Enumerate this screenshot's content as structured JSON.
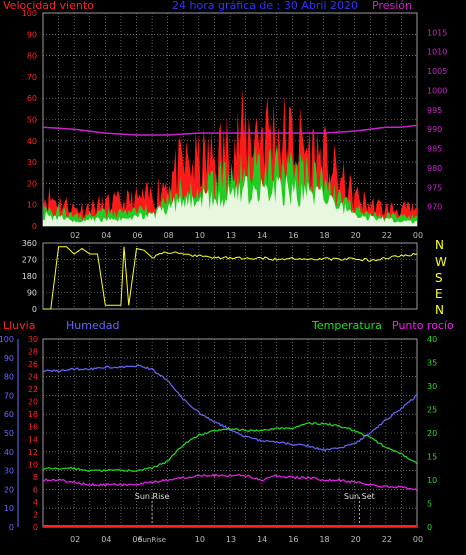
{
  "header": {
    "wind_label": "Velocidad viento",
    "title": "24 hora gráfica de : 30 Abril 2020",
    "pressure_label": "Presión"
  },
  "middle": {
    "compass": [
      "N",
      "W",
      "S",
      "E",
      "N"
    ]
  },
  "lower_header": {
    "rain_label": "Lluvia",
    "humidity_label": "Humedad",
    "temp_label": "Temperatura",
    "dew_label": "Punto rocío"
  },
  "colors": {
    "wind_gust": "#ff1a1a",
    "wind_avg": "#22cc22",
    "wind_min": "#e8f8e0",
    "pressure": "#cc22cc",
    "direction": "#ffff22",
    "humidity": "#6666ff",
    "temperature": "#22dd22",
    "dew_point": "#ee22ee",
    "rain": "#ff2222",
    "grid": "#9a9a9a"
  },
  "chart_data": [
    {
      "type": "area",
      "title": "24 hora gráfica de : 30 Abril 2020",
      "x_ticks": [
        "02",
        "04",
        "06",
        "08",
        "10",
        "13",
        "14",
        "16",
        "18",
        "20",
        "22",
        "00"
      ],
      "y_left": {
        "label": "Velocidad viento",
        "range": [
          0,
          100
        ],
        "ticks": [
          "0",
          "10",
          "20",
          "30",
          "40",
          "50",
          "60",
          "70",
          "80",
          "90",
          "100"
        ]
      },
      "y_right": {
        "label": "Presión",
        "range": [
          965,
          1020
        ],
        "ticks": [
          "970",
          "975",
          "980",
          "985",
          "990",
          "995",
          "1000",
          "1005",
          "1010",
          "1015"
        ]
      },
      "x_range": [
        0,
        24
      ],
      "grid": true,
      "series": [
        {
          "name": "gust",
          "x": [
            0,
            1,
            2,
            3,
            4,
            5,
            6,
            7,
            8,
            9,
            10,
            11,
            12,
            13,
            14,
            15,
            16,
            17,
            18,
            19,
            20,
            21,
            22,
            23,
            24
          ],
          "values": [
            14,
            12,
            8,
            9,
            10,
            11,
            12,
            14,
            22,
            28,
            30,
            32,
            38,
            43,
            46,
            44,
            40,
            36,
            32,
            22,
            14,
            10,
            8,
            8,
            7
          ]
        },
        {
          "name": "average",
          "x": [
            0,
            1,
            2,
            3,
            4,
            5,
            6,
            7,
            8,
            9,
            10,
            11,
            12,
            13,
            14,
            15,
            16,
            17,
            18,
            19,
            20,
            21,
            22,
            23,
            24
          ],
          "values": [
            8,
            7,
            4,
            5,
            6,
            6,
            7,
            9,
            14,
            17,
            18,
            20,
            24,
            26,
            28,
            27,
            25,
            23,
            20,
            14,
            8,
            6,
            5,
            4,
            4
          ]
        },
        {
          "name": "minimum",
          "x": [
            0,
            1,
            2,
            3,
            4,
            5,
            6,
            7,
            8,
            9,
            10,
            11,
            12,
            13,
            14,
            15,
            16,
            17,
            18,
            19,
            20,
            21,
            22,
            23,
            24
          ],
          "values": [
            5,
            4,
            2,
            3,
            3,
            3,
            4,
            5,
            9,
            11,
            12,
            13,
            16,
            17,
            19,
            18,
            16,
            15,
            13,
            9,
            5,
            4,
            3,
            2,
            2
          ]
        },
        {
          "name": "pressure",
          "x": [
            0,
            2,
            4,
            6,
            8,
            10,
            12,
            14,
            16,
            18,
            20,
            21,
            22,
            23,
            24
          ],
          "values": [
            990.5,
            990,
            989,
            988.5,
            988.5,
            989,
            989,
            989,
            989,
            989,
            989.5,
            990,
            990.5,
            990.5,
            991
          ]
        }
      ]
    },
    {
      "type": "line",
      "title": "",
      "y_left": {
        "label": "",
        "range": [
          0,
          360
        ],
        "ticks": [
          "0",
          "90",
          "180",
          "270",
          "360"
        ]
      },
      "y_right": {
        "label": "",
        "ticks": [
          "N",
          "W",
          "S",
          "E",
          "N"
        ]
      },
      "x_range": [
        0,
        24
      ],
      "grid": true,
      "series": [
        {
          "name": "direction",
          "x": [
            0,
            0.5,
            1,
            1.5,
            2,
            2.5,
            3,
            3.5,
            4,
            4.5,
            5,
            5.2,
            5.5,
            6,
            6.5,
            7,
            7.5,
            8,
            9,
            10,
            11,
            12,
            13,
            14,
            15,
            16,
            17,
            18,
            19,
            20,
            21,
            22,
            23,
            24
          ],
          "values": [
            0,
            0,
            340,
            340,
            300,
            330,
            300,
            300,
            20,
            20,
            20,
            340,
            20,
            330,
            320,
            280,
            300,
            310,
            300,
            290,
            280,
            280,
            275,
            280,
            270,
            275,
            270,
            275,
            270,
            275,
            265,
            275,
            290,
            300
          ]
        }
      ]
    },
    {
      "type": "line",
      "title": "",
      "y_axes": {
        "humidity": {
          "label": "Humedad",
          "range": [
            0,
            100
          ],
          "ticks": [
            "0",
            "10",
            "20",
            "30",
            "40",
            "50",
            "60",
            "70",
            "80",
            "90",
            "100"
          ]
        },
        "rain": {
          "label": "Lluvia",
          "range": [
            0,
            30
          ],
          "ticks": [
            "0",
            "2",
            "4",
            "6",
            "8",
            "10",
            "12",
            "14",
            "16",
            "18",
            "20",
            "22",
            "24",
            "26",
            "28",
            "30"
          ]
        },
        "temperature": {
          "label": "Temperatura",
          "range": [
            0,
            40
          ],
          "ticks": [
            "0",
            "5",
            "10",
            "15",
            "20",
            "25",
            "30",
            "35",
            "40"
          ]
        }
      },
      "x_range": [
        0,
        24
      ],
      "grid": true,
      "annotations": [
        {
          "text": "Sun Rise",
          "x": 7.0
        },
        {
          "text": "Sun Set",
          "x": 20.3
        }
      ],
      "series": [
        {
          "name": "Humedad",
          "x": [
            0,
            1,
            2,
            3,
            4,
            5,
            6,
            7,
            8,
            9,
            10,
            11,
            12,
            13,
            14,
            15,
            16,
            17,
            18,
            19,
            20,
            21,
            22,
            23,
            24
          ],
          "values": [
            83,
            83,
            84,
            84,
            85,
            85,
            86,
            84,
            78,
            68,
            61,
            56,
            52,
            48,
            46,
            45,
            44,
            43,
            41,
            42,
            44,
            50,
            57,
            63,
            70
          ]
        },
        {
          "name": "Temperatura",
          "x": [
            0,
            1,
            2,
            3,
            4,
            5,
            6,
            7,
            8,
            9,
            10,
            11,
            12,
            13,
            14,
            15,
            16,
            17,
            18,
            19,
            20,
            21,
            22,
            23,
            24
          ],
          "values": [
            12.5,
            12.5,
            12.5,
            12,
            12,
            12,
            12,
            12.5,
            14,
            17.5,
            19.5,
            20.5,
            21,
            20.5,
            20.5,
            21,
            21,
            22,
            22,
            21.5,
            20.5,
            19,
            17,
            15.5,
            13.5
          ]
        },
        {
          "name": "Punto rocío",
          "x": [
            0,
            1,
            2,
            3,
            4,
            5,
            6,
            7,
            8,
            9,
            10,
            11,
            12,
            13,
            14,
            15,
            16,
            17,
            18,
            19,
            20,
            21,
            22,
            23,
            24
          ],
          "values": [
            10,
            10,
            9.5,
            9,
            9,
            9,
            9,
            9.5,
            10,
            10.5,
            11,
            11,
            11,
            11,
            10,
            11,
            10.5,
            10.5,
            10,
            10,
            9.5,
            9,
            8.5,
            8.5,
            8
          ]
        },
        {
          "name": "Lluvia",
          "x": [
            0,
            24
          ],
          "values": [
            0,
            0
          ]
        }
      ]
    }
  ]
}
